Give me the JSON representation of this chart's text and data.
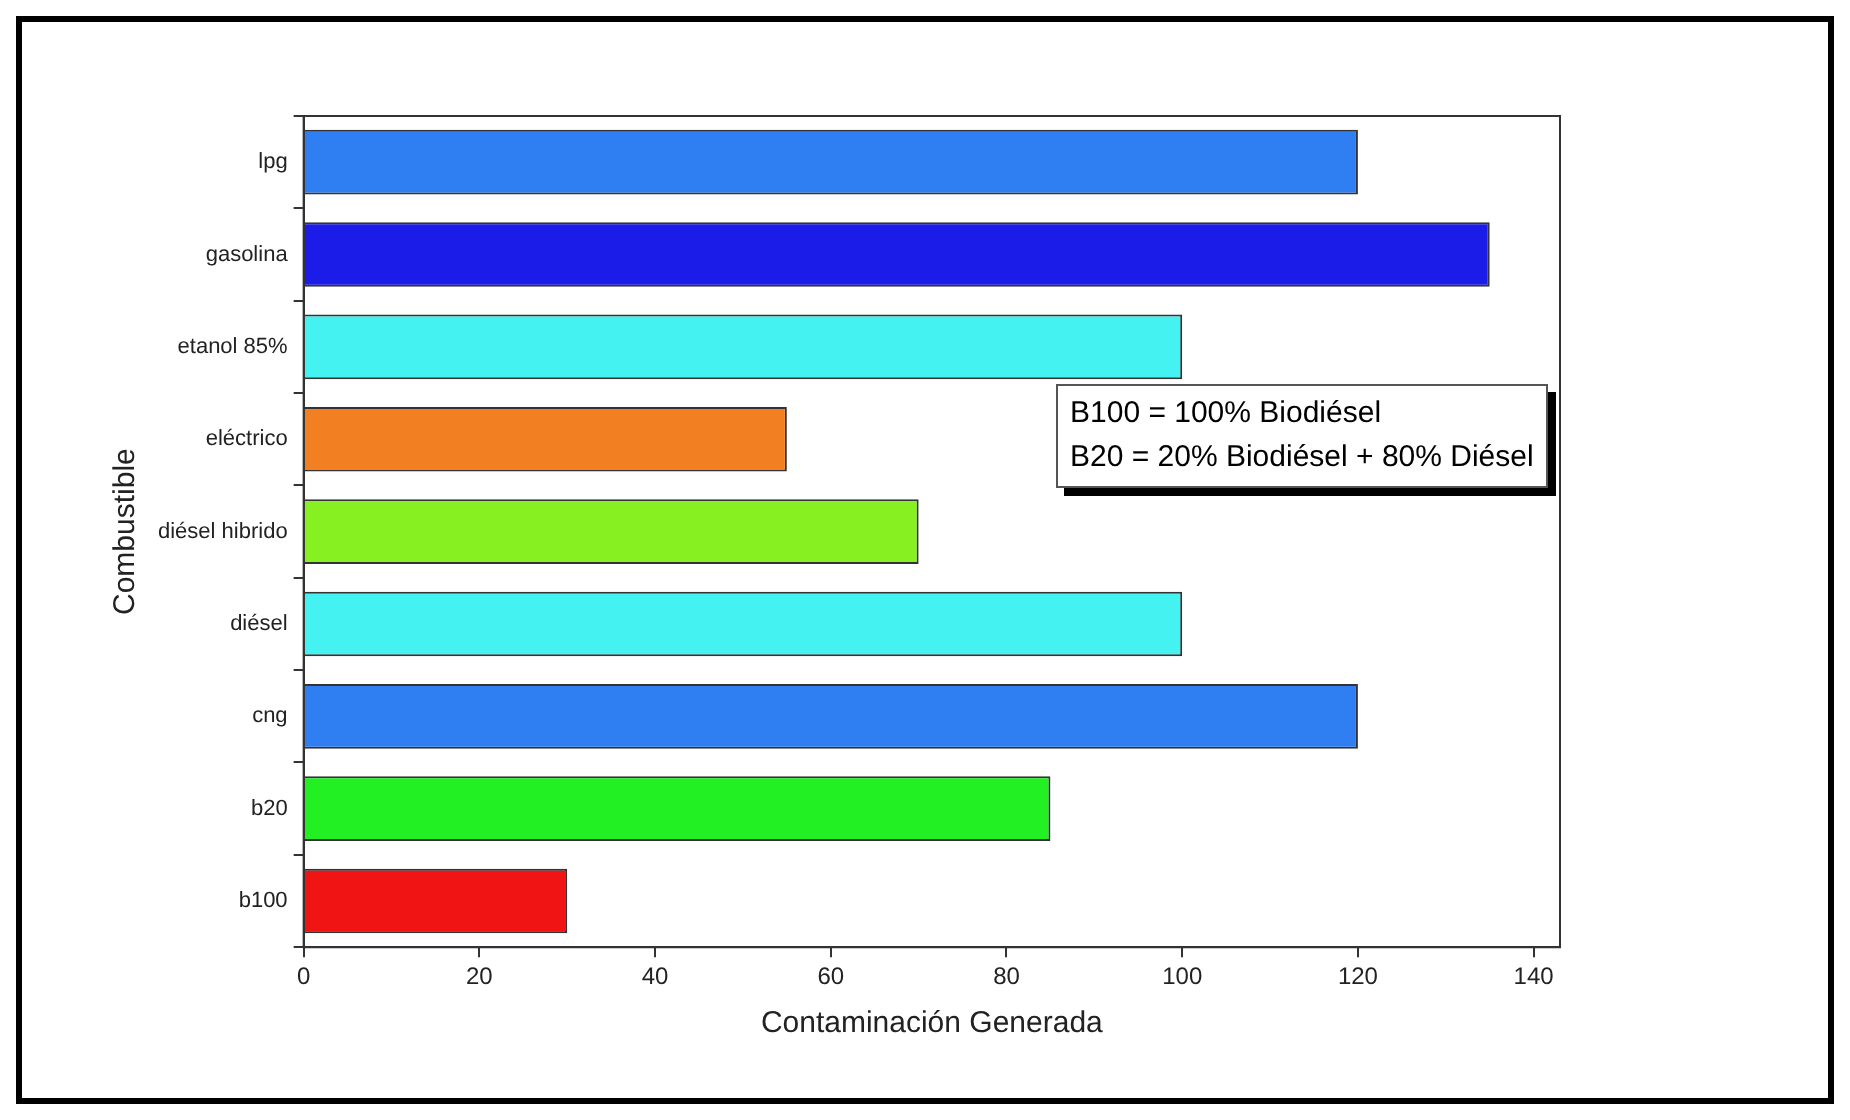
{
  "chart_data": {
    "type": "bar",
    "orientation": "horizontal",
    "xlabel": "Contaminación Generada",
    "ylabel": "Combustible",
    "categories": [
      "lpg",
      "gasolina",
      "etanol 85%",
      "eléctrico",
      "diésel hibrido",
      "diésel",
      "cng",
      "b20",
      "b100"
    ],
    "values": [
      120,
      135,
      100,
      55,
      70,
      100,
      120,
      85,
      30
    ],
    "colors": [
      "#2f7ff2",
      "#1c1ce8",
      "#44f2f2",
      "#f28022",
      "#86f020",
      "#44f2f2",
      "#2f7ff2",
      "#22f022",
      "#f01414"
    ],
    "xlim": [
      0,
      143
    ],
    "xticks": [
      0,
      20,
      40,
      60,
      80,
      100,
      120,
      140
    ],
    "grid": false,
    "legend": false,
    "annotations": [
      "B100 = 100% Biodiésel",
      "B20 = 20% Biodiésel + 80% Diésel"
    ]
  }
}
